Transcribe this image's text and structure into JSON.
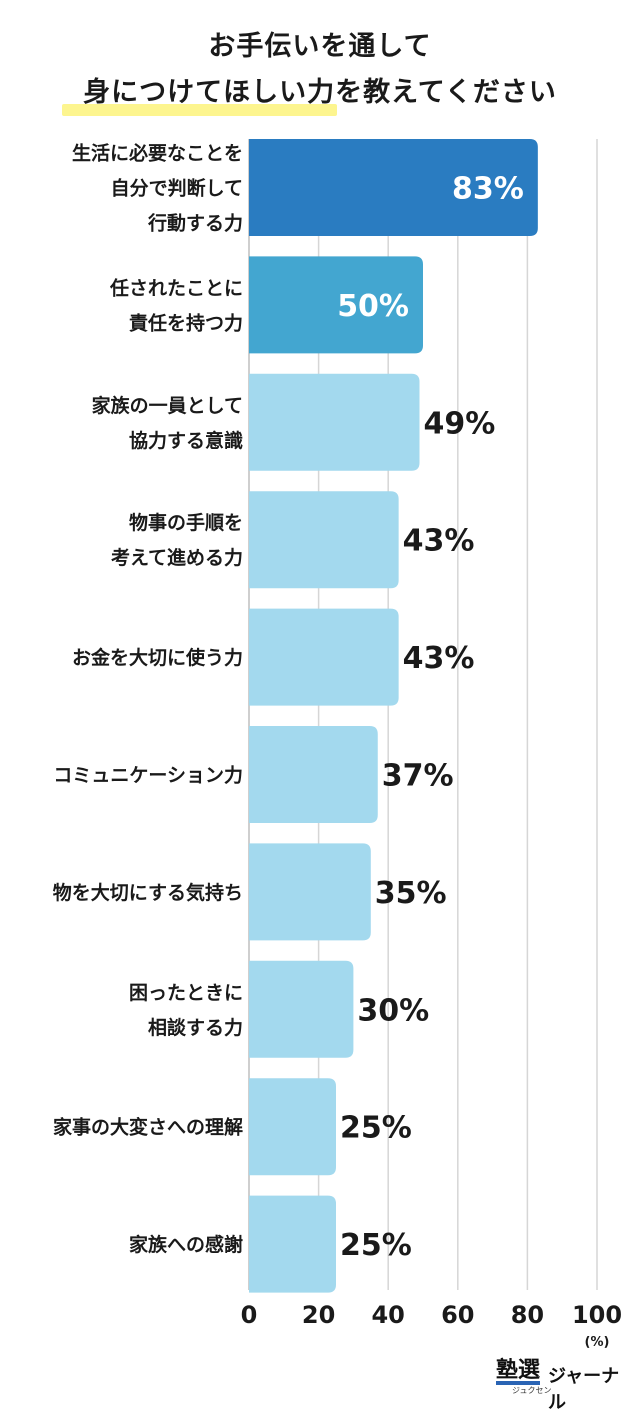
{
  "title_line1": "お手伝いを通して",
  "title_line2": "身につけてほしい力を教えてください",
  "unit": "(%)",
  "logo": {
    "mark": "塾選",
    "sub": "ジュクセン",
    "word": "ジャーナル"
  },
  "colors": {
    "top1": "#2a7cc1",
    "top2": "#43a6d0",
    "rest": "#a3d9ee",
    "label_inside": "#ffffff",
    "label_outside": "#1a1a1a",
    "grid": "#d6d6d6",
    "title_highlight": "#fdf58f"
  },
  "chart_data": {
    "type": "bar",
    "orientation": "horizontal",
    "title": "お手伝いを通して身につけてほしい力を教えてください",
    "categories": [
      [
        "生活に必要なことを",
        "自分で判断して",
        "行動する力"
      ],
      [
        "任されたことに",
        "責任を持つ力"
      ],
      [
        "家族の一員として",
        "協力する意識"
      ],
      [
        "物事の手順を",
        "考えて進める力"
      ],
      [
        "お金を大切に使う力"
      ],
      [
        "コミュニケーション力"
      ],
      [
        "物を大切にする気持ち"
      ],
      [
        "困ったときに",
        "相談する力"
      ],
      [
        "家事の大変さへの理解"
      ],
      [
        "家族への感謝"
      ]
    ],
    "values": [
      83,
      50,
      49,
      43,
      43,
      37,
      35,
      30,
      25,
      25
    ],
    "value_labels": [
      "83%",
      "50%",
      "49%",
      "43%",
      "43%",
      "37%",
      "35%",
      "30%",
      "25%",
      "25%"
    ],
    "xlim": [
      0,
      100
    ],
    "ticks": [
      0,
      20,
      40,
      60,
      80,
      100
    ],
    "xlabel": "(%)",
    "grid": true
  }
}
